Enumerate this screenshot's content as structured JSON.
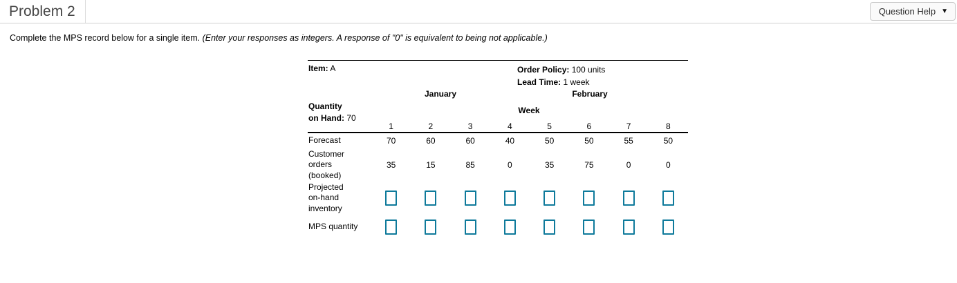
{
  "header": {
    "title": "Problem 2",
    "question_help": "Question Help",
    "caret": "▼"
  },
  "instruction": {
    "lead": "Complete the MPS record below for a single item. ",
    "italic": "(Enter your responses as integers. A response of \"0\" is equivalent to being not applicable.)"
  },
  "table": {
    "item": {
      "label": "Item:",
      "value": "A"
    },
    "order_policy": {
      "label": "Order Policy:",
      "value": "100 units"
    },
    "lead_time": {
      "label": "Lead Time:",
      "value": "1 week"
    },
    "months": {
      "first": "January",
      "second": "February"
    },
    "quantity_on_hand": {
      "line1": "Quantity",
      "line2": "on Hand:",
      "value": "70"
    },
    "week_header": "Week",
    "week_numbers": [
      "1",
      "2",
      "3",
      "4",
      "5",
      "6",
      "7",
      "8"
    ],
    "rows": [
      {
        "label_lines": [
          "Forecast"
        ],
        "values": [
          "70",
          "60",
          "60",
          "40",
          "50",
          "50",
          "55",
          "50"
        ]
      },
      {
        "label_lines": [
          "Customer",
          "orders",
          "(booked)"
        ],
        "values": [
          "35",
          "15",
          "85",
          "0",
          "35",
          "75",
          "0",
          "0"
        ]
      },
      {
        "label_lines": [
          "Projected",
          "on-hand",
          "inventory"
        ],
        "values": []
      },
      {
        "label_lines": [
          "MPS quantity"
        ],
        "values": []
      }
    ]
  },
  "colors": {
    "input_border": "#0e7a9b"
  }
}
